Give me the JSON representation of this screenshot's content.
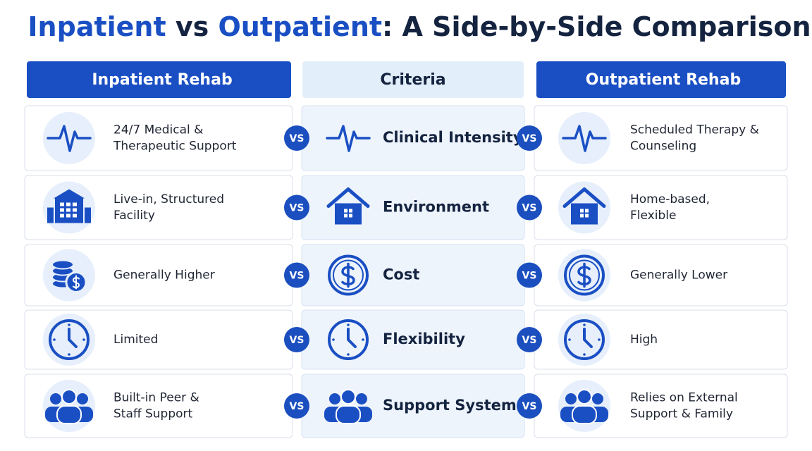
{
  "title_parts": [
    "Inpatient",
    " vs ",
    "Outpatient",
    ": A Side-by-Side Comparison"
  ],
  "headers": {
    "inpatient": "Inpatient Rehab",
    "criteria": "Criteria",
    "outpatient": "Outpatient Rehab"
  },
  "vs_label": "VS",
  "rows": [
    {
      "criteria": "Clinical Intensity",
      "inpatient": [
        "24/7 Medical &",
        "Therapeutic Support"
      ],
      "outpatient": [
        "Scheduled Therapy &",
        "Counseling"
      ]
    },
    {
      "criteria": "Environment",
      "inpatient": [
        "Live-in, Structured",
        "Facility"
      ],
      "outpatient": [
        "Home-based,",
        "Flexible"
      ]
    },
    {
      "criteria": "Cost",
      "inpatient": [
        "Generally Higher"
      ],
      "outpatient": [
        "Generally Lower"
      ]
    },
    {
      "criteria": "Flexibility",
      "inpatient": [
        "Limited"
      ],
      "outpatient": [
        "High"
      ]
    },
    {
      "criteria": "Support System",
      "inpatient": [
        "Built-in Peer &",
        "Staff Support"
      ],
      "outpatient": [
        "Relies on External",
        "Support & Family"
      ]
    }
  ]
}
